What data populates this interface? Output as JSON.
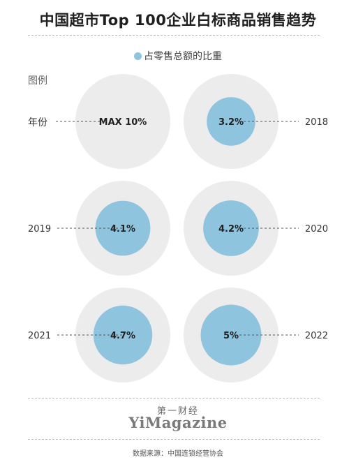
{
  "title": "中国超市Top 100企业白标商品销售趋势",
  "legend": {
    "series_label": "占零售总额的比重",
    "legend_title": "图例",
    "year_label": "年份",
    "max_label": "MAX 10%"
  },
  "chart_data": {
    "type": "bubble",
    "title": "中国超市Top 100企业白标商品销售趋势",
    "series": [
      {
        "name": "占零售总额的比重",
        "x": [
          "2018",
          "2019",
          "2020",
          "2021",
          "2022"
        ],
        "values": [
          3.2,
          4.1,
          4.2,
          4.7,
          5
        ],
        "labels": [
          "3.2%",
          "4.1%",
          "4.2%",
          "4.7%",
          "5%"
        ]
      }
    ],
    "max_value": 10,
    "colors": {
      "bubble": "#8ec4dd",
      "max_circle": "#ececec",
      "leader": "#555555"
    }
  },
  "brand": {
    "cn": "第一财经",
    "en": "YiMagazine"
  },
  "source": "数据来源：中国连锁经营协会"
}
